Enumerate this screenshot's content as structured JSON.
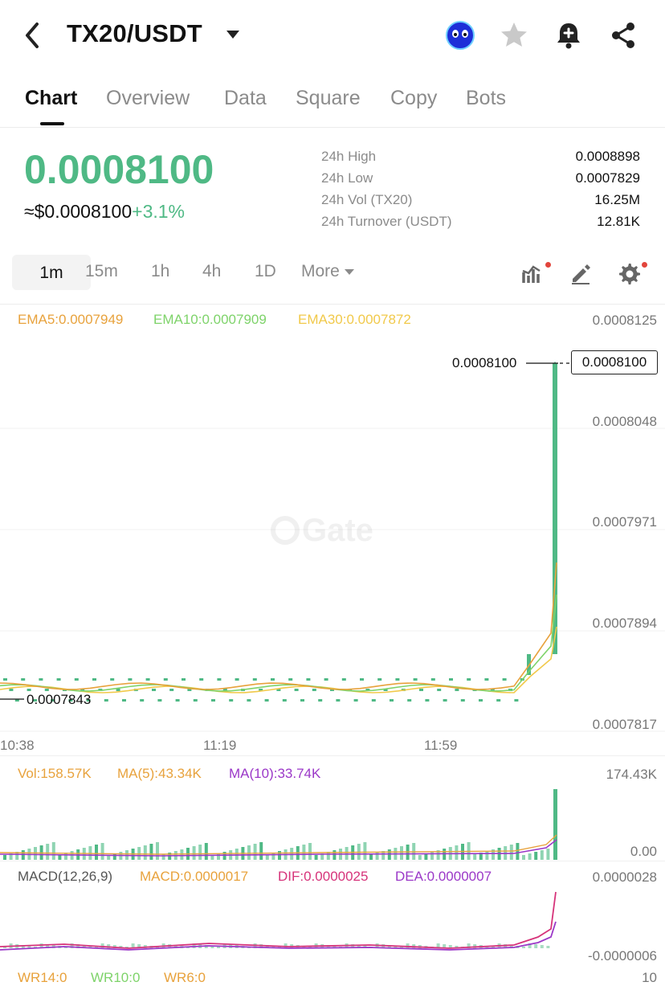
{
  "header": {
    "pair": "TX20/USDT",
    "icons": [
      "back-arrow-icon",
      "chevron-down-icon",
      "mascot-avatar-icon",
      "star-icon",
      "bell-plus-icon",
      "share-icon"
    ]
  },
  "tabs": [
    {
      "label": "Chart",
      "active": true
    },
    {
      "label": "Overview"
    },
    {
      "label": "Data"
    },
    {
      "label": "Square"
    },
    {
      "label": "Copy"
    },
    {
      "label": "Bots"
    }
  ],
  "price": {
    "last": "0.0008100",
    "usd_approx": "≈$0.0008100",
    "change": "+3.1%",
    "up_color": "#4fb985"
  },
  "stats": [
    {
      "label": "24h High",
      "value": "0.0008898"
    },
    {
      "label": "24h Low",
      "value": "0.0007829"
    },
    {
      "label": "24h Vol (TX20)",
      "value": "16.25M"
    },
    {
      "label": "24h Turnover (USDT)",
      "value": "12.81K"
    }
  ],
  "timeframes": {
    "items": [
      "1m",
      "15m",
      "1h",
      "4h",
      "1D"
    ],
    "active": "1m",
    "more": "More"
  },
  "chart": {
    "watermark": "Gate",
    "ema": {
      "ema5": "EMA5:0.0007949",
      "ema10": "EMA10:0.0007909",
      "ema30": "EMA30:0.0007872",
      "colors": {
        "ema5": "#e8a23c",
        "ema10": "#7ed36a",
        "ema30": "#f1c94a"
      }
    },
    "last_price_label": "0.0008100",
    "last_price_box": "0.0008100",
    "low_marker": "0.0007843",
    "y_ticks": [
      "0.0008125",
      "0.0008048",
      "0.0007971",
      "0.0007894",
      "0.0007817"
    ],
    "x_ticks": [
      "10:38",
      "11:19",
      "11:59"
    ]
  },
  "volume": {
    "vol": "Vol:158.57K",
    "ma5": "MA(5):43.34K",
    "ma10": "MA(10):33.74K",
    "top": "174.43K",
    "bottom": "0.00"
  },
  "macd": {
    "title": "MACD(12,26,9)",
    "macd": "MACD:0.0000017",
    "dif": "DIF:0.0000025",
    "dea": "DEA:0.0000007",
    "top": "0.0000028",
    "bottom": "-0.0000006"
  },
  "wr": {
    "wr14": "WR14:0",
    "wr10": "WR10:0",
    "wr6": "WR6:0",
    "top": "10"
  }
}
